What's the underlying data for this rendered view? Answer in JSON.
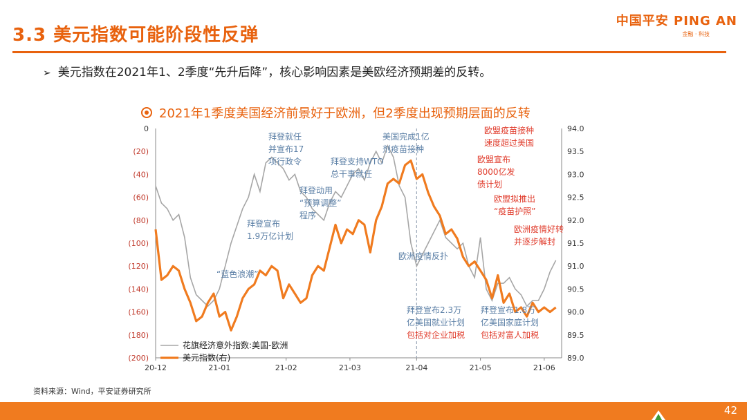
{
  "page": {
    "title": "3.3 美元指数可能阶段性反弹",
    "bullet": "美元指数在2021年1、2季度“先升后降”，核心影响因素是美欧经济预期差的反转。",
    "logo_main": "中国平安 PING AN",
    "logo_sub": "金融 · 科技",
    "source": "资料来源：Wind，平安证券研究所",
    "page_number": "42",
    "colors": {
      "accent": "#e8620e",
      "citi": "#a6a6a6",
      "dxy": "#f07b1f",
      "note_us": "#5b7fa6",
      "note_eu": "#e03b2b"
    }
  },
  "chart_data": {
    "type": "line",
    "title": "2021年1季度美国经济前景好于欧洲，但2季度出现预期层面的反转",
    "x_ticks": [
      "20-12",
      "21-01",
      "21-02",
      "21-03",
      "21-04",
      "21-05",
      "21-06"
    ],
    "x_tick_index": [
      0,
      22,
      45,
      67,
      90,
      112,
      134
    ],
    "y_left_ticks": [
      "0",
      "(20)",
      "(40)",
      "(60)",
      "(80)",
      "(100)",
      "(120)",
      "(140)",
      "(160)",
      "(180)",
      "(200)"
    ],
    "y_left_range": [
      -200,
      0
    ],
    "y_right_ticks": [
      "94.0",
      "93.5",
      "93.0",
      "92.5",
      "92.0",
      "91.5",
      "91.0",
      "90.5",
      "90.0",
      "89.5",
      "89.0"
    ],
    "y_right_range": [
      89.0,
      94.0
    ],
    "series": [
      {
        "name": "花旗经济意外指数:美国-欧洲",
        "axis": "left",
        "x": [
          0,
          2,
          4,
          6,
          8,
          10,
          12,
          14,
          16,
          18,
          20,
          22,
          24,
          26,
          28,
          30,
          32,
          34,
          36,
          38,
          40,
          42,
          44,
          46,
          48,
          50,
          52,
          54,
          56,
          58,
          60,
          62,
          64,
          66,
          68,
          70,
          72,
          74,
          76,
          78,
          80,
          82,
          84,
          86,
          88,
          90,
          92,
          94,
          96,
          98,
          100,
          102,
          104,
          106,
          108,
          110,
          112,
          114,
          116,
          118,
          120,
          122,
          124,
          126,
          128,
          130,
          132,
          134,
          136,
          138
        ],
        "values": [
          -50,
          -65,
          -70,
          -80,
          -75,
          -95,
          -130,
          -145,
          -150,
          -155,
          -150,
          -140,
          -120,
          -100,
          -85,
          -70,
          -60,
          -40,
          -55,
          -30,
          -25,
          -30,
          -35,
          -45,
          -40,
          -55,
          -60,
          -70,
          -75,
          -80,
          -65,
          -55,
          -60,
          -50,
          -40,
          -35,
          -45,
          -30,
          -20,
          -30,
          -15,
          -25,
          -50,
          -60,
          -100,
          -120,
          -110,
          -100,
          -90,
          -80,
          -95,
          -100,
          -105,
          -100,
          -120,
          -130,
          -95,
          -140,
          -150,
          -135,
          -135,
          -130,
          -140,
          -145,
          -155,
          -150,
          -150,
          -140,
          -125,
          -115
        ]
      },
      {
        "name": "美元指数(右)",
        "axis": "right",
        "x": [
          0,
          2,
          4,
          6,
          8,
          10,
          12,
          14,
          16,
          18,
          20,
          22,
          24,
          26,
          28,
          30,
          32,
          34,
          36,
          38,
          40,
          42,
          44,
          46,
          48,
          50,
          52,
          54,
          56,
          58,
          60,
          62,
          64,
          66,
          68,
          70,
          72,
          74,
          76,
          78,
          80,
          82,
          84,
          86,
          88,
          90,
          92,
          94,
          96,
          98,
          100,
          102,
          104,
          106,
          108,
          110,
          112,
          114,
          116,
          118,
          120,
          122,
          124,
          126,
          128,
          130,
          132,
          134,
          136,
          138
        ],
        "values": [
          91.8,
          90.7,
          90.8,
          91.0,
          90.9,
          90.5,
          90.2,
          89.8,
          89.9,
          90.2,
          90.4,
          89.9,
          90.0,
          89.6,
          89.9,
          90.3,
          90.5,
          90.6,
          90.9,
          90.8,
          91.0,
          90.9,
          90.3,
          90.6,
          90.4,
          90.2,
          90.3,
          90.8,
          91.0,
          90.9,
          91.4,
          91.9,
          91.5,
          91.8,
          91.7,
          92.0,
          91.9,
          91.3,
          92.0,
          92.3,
          92.8,
          92.9,
          92.8,
          93.2,
          93.3,
          92.9,
          93.0,
          92.6,
          92.3,
          92.1,
          91.7,
          91.8,
          91.6,
          91.2,
          91.0,
          91.1,
          90.9,
          90.7,
          90.3,
          90.8,
          90.2,
          90.4,
          90.0,
          90.1,
          89.9,
          90.2,
          90.0,
          90.1,
          90.0,
          90.1
        ]
      }
    ],
    "vertical_marker_index": 90,
    "annotations": [
      {
        "lines": [
          "拜登就任",
          "并宣布17",
          "项行政令"
        ],
        "color": "us",
        "ax": 388,
        "ay": 202
      },
      {
        "lines": [
          "拜登支持WTO",
          "总干事就任"
        ],
        "color": "us",
        "ax": 478,
        "ay": 238
      },
      {
        "lines": [
          "拜登动用",
          "“预算调整”",
          "程序"
        ],
        "color": "us",
        "ax": 433,
        "ay": 280
      },
      {
        "lines": [
          "拜登宣布",
          "1.9万亿计划"
        ],
        "color": "us",
        "ax": 357,
        "ay": 328
      },
      {
        "lines": [
          "“蓝色浪潮”"
        ],
        "color": "us",
        "ax": 313,
        "ay": 401
      },
      {
        "lines": [
          "美国完成1亿",
          "剂疫苗接种"
        ],
        "color": "us",
        "ax": 553,
        "ay": 202
      },
      {
        "lines": [
          "欧洲疫情反扑"
        ],
        "color": "us",
        "ax": 576,
        "ay": 375
      },
      {
        "lines": [
          "拜登宣布2.3万",
          "亿美国就业计划",
          "包括对企业加税"
        ],
        "color": "mix",
        "ax": 588,
        "ay": 453
      },
      {
        "lines": [
          "拜登宣布1.8万",
          "亿美国家庭计划",
          "包括对富人加税"
        ],
        "color": "mix",
        "ax": 695,
        "ay": 453
      },
      {
        "lines": [
          "欧盟疫苗接种",
          "速度超过美国"
        ],
        "color": "eu",
        "ax": 700,
        "ay": 193
      },
      {
        "lines": [
          "欧盟宣布",
          "8000亿发",
          "债计划"
        ],
        "color": "eu",
        "ax": 690,
        "ay": 235
      },
      {
        "lines": [
          "欧盟拟推出",
          "“疫苗护照”"
        ],
        "color": "eu",
        "ax": 714,
        "ay": 292
      },
      {
        "lines": [
          "欧洲疫情好转",
          "并逐步解封"
        ],
        "color": "eu",
        "ax": 743,
        "ay": 336
      }
    ]
  }
}
